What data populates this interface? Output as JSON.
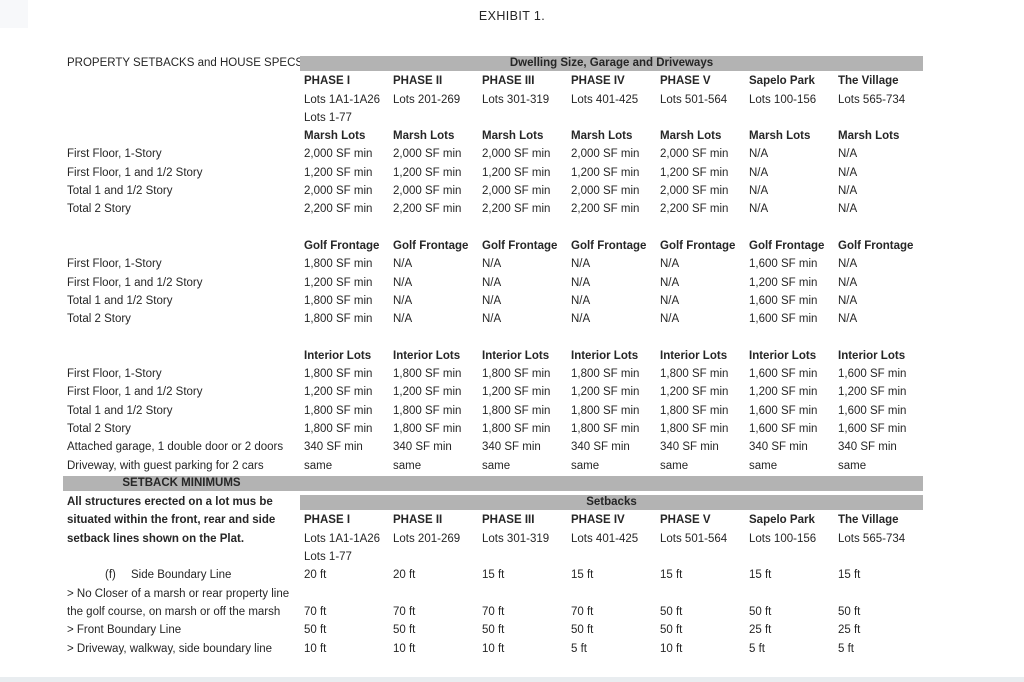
{
  "page": {
    "title": "EXHIBIT 1.",
    "left_header": "PROPERTY SETBACKS and HOUSE SPECS"
  },
  "colors": {
    "band_gray": "#b3b3b3",
    "text": "#262626",
    "background": "#ffffff"
  },
  "columns": [
    {
      "phase": "PHASE I",
      "lots": "Lots 1A1-1A26",
      "lots2": "Lots 1-77"
    },
    {
      "phase": "PHASE II",
      "lots": "Lots 201-269"
    },
    {
      "phase": "PHASE III",
      "lots": "Lots 301-319"
    },
    {
      "phase": "PHASE IV",
      "lots": "Lots 401-425"
    },
    {
      "phase": "PHASE V",
      "lots": "Lots 501-564"
    },
    {
      "phase": "Sapelo Park",
      "lots": "Lots 100-156"
    },
    {
      "phase": "The Village",
      "lots": "Lots 565-734"
    }
  ],
  "dwelling": {
    "band_label": "Dwelling Size, Garage and Driveways",
    "marsh": {
      "header_cells": [
        "Marsh Lots",
        "Marsh Lots",
        "Marsh Lots",
        "Marsh Lots",
        "Marsh Lots",
        "Marsh Lots",
        "Marsh Lots"
      ],
      "rows": [
        {
          "label": "First Floor, 1-Story",
          "values": [
            "2,000 SF min",
            "2,000 SF min",
            "2,000 SF min",
            "2,000 SF min",
            "2,000 SF min",
            "N/A",
            "N/A"
          ]
        },
        {
          "label": "First Floor, 1 and 1/2 Story",
          "values": [
            "1,200 SF min",
            "1,200 SF min",
            "1,200 SF min",
            "1,200 SF min",
            "1,200 SF min",
            "N/A",
            "N/A"
          ]
        },
        {
          "label": "Total 1 and 1/2 Story",
          "values": [
            "2,000 SF min",
            "2,000 SF min",
            "2,000 SF min",
            "2,000 SF min",
            "2,000 SF min",
            "N/A",
            "N/A"
          ]
        },
        {
          "label": "Total 2 Story",
          "values": [
            "2,200 SF min",
            "2,200 SF min",
            "2,200 SF min",
            "2,200 SF min",
            "2,200 SF min",
            "N/A",
            "N/A"
          ]
        }
      ]
    },
    "golf": {
      "header_cells": [
        "Golf Frontage",
        "Golf Frontage",
        "Golf Frontage",
        "Golf Frontage",
        "Golf Frontage",
        "Golf Frontage",
        "Golf Frontage"
      ],
      "rows": [
        {
          "label": "First Floor, 1-Story",
          "values": [
            "1,800 SF min",
            "N/A",
            "N/A",
            "N/A",
            "N/A",
            "1,600 SF min",
            "N/A"
          ]
        },
        {
          "label": "First Floor, 1 and 1/2 Story",
          "values": [
            "1,200 SF min",
            "N/A",
            "N/A",
            "N/A",
            "N/A",
            "1,200 SF min",
            "N/A"
          ]
        },
        {
          "label": "Total 1 and 1/2 Story",
          "values": [
            "1,800 SF min",
            "N/A",
            "N/A",
            "N/A",
            "N/A",
            "1,600 SF min",
            "N/A"
          ]
        },
        {
          "label": "Total 2 Story",
          "values": [
            "1,800 SF min",
            "N/A",
            "N/A",
            "N/A",
            "N/A",
            "1,600 SF min",
            "N/A"
          ]
        }
      ]
    },
    "interior": {
      "header_cells": [
        "Interior Lots",
        "Interior Lots",
        "Interior Lots",
        "Interior Lots",
        "Interior Lots",
        "Interior Lots",
        "Interior Lots"
      ],
      "rows": [
        {
          "label": "First Floor, 1-Story",
          "values": [
            "1,800 SF min",
            "1,800 SF min",
            "1,800 SF min",
            "1,800 SF min",
            "1,800 SF min",
            "1,600 SF min",
            "1,600 SF min"
          ]
        },
        {
          "label": "First Floor, 1 and 1/2 Story",
          "values": [
            "1,200 SF min",
            "1,200 SF min",
            "1,200 SF min",
            "1,200 SF min",
            "1,200 SF min",
            "1,200 SF min",
            "1,200 SF min"
          ]
        },
        {
          "label": "Total 1 and 1/2 Story",
          "values": [
            "1,800 SF min",
            "1,800 SF min",
            "1,800 SF min",
            "1,800 SF min",
            "1,800 SF min",
            "1,600 SF min",
            "1,600 SF min"
          ]
        },
        {
          "label": "Total 2 Story",
          "values": [
            "1,800 SF min",
            "1,800 SF min",
            "1,800 SF min",
            "1,800 SF min",
            "1,800 SF min",
            "1,600 SF min",
            "1,600 SF min"
          ]
        },
        {
          "label": "Attached garage, 1 double door or 2 doors",
          "values": [
            "340 SF min",
            "340 SF min",
            "340 SF min",
            "340 SF min",
            "340 SF min",
            "340 SF min",
            "340 SF min"
          ]
        },
        {
          "label": "Driveway, with guest parking for 2 cars",
          "values": [
            "same",
            "same",
            "same",
            "same",
            "same",
            "same",
            "same"
          ]
        }
      ]
    }
  },
  "setbacks": {
    "band_label": "SETBACK MINIMUMS",
    "note_lines": [
      "All structures erected on a lot mus be",
      "situated within the front, rear and side",
      "setback lines shown on the Plat."
    ],
    "sub_band_label": "Setbacks",
    "rows": [
      {
        "prefix": "(f)",
        "label": "Side Boundary Line",
        "values": [
          "20 ft",
          "20 ft",
          "15 ft",
          "15 ft",
          "15 ft",
          "15 ft",
          "15 ft"
        ]
      },
      {
        "label": "> No Closer of a marsh or rear property line",
        "values": []
      },
      {
        "label": "the golf course, on marsh or off  the marsh",
        "values": [
          "70 ft",
          "70 ft",
          "70 ft",
          "70 ft",
          "50 ft",
          "50 ft",
          "50 ft"
        ]
      },
      {
        "label": "> Front Boundary Line",
        "values": [
          "50 ft",
          "50 ft",
          "50 ft",
          "50 ft",
          "50 ft",
          "25 ft",
          "25 ft"
        ]
      },
      {
        "label": "> Driveway, walkway, side boundary line",
        "values": [
          "10 ft",
          "10 ft",
          "10 ft",
          "5 ft",
          "10 ft",
          "5 ft",
          "5 ft"
        ]
      }
    ]
  }
}
